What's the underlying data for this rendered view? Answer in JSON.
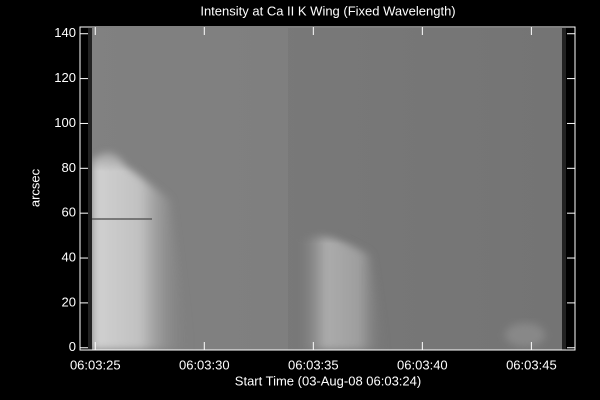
{
  "chart_data": {
    "type": "image",
    "title": "Intensity at Ca II K Wing (Fixed Wavelength)",
    "x_label": "Start Time (03-Aug-08 06:03:24)",
    "y_label": "arcsec",
    "xlim": [
      "06:03:24.3",
      "06:03:47.0"
    ],
    "xticks": [
      "06:03:25",
      "06:03:30",
      "06:03:35",
      "06:03:40",
      "06:03:45"
    ],
    "ylim": [
      -1,
      143
    ],
    "yticks": [
      0,
      20,
      40,
      60,
      80,
      100,
      120,
      140
    ]
  }
}
